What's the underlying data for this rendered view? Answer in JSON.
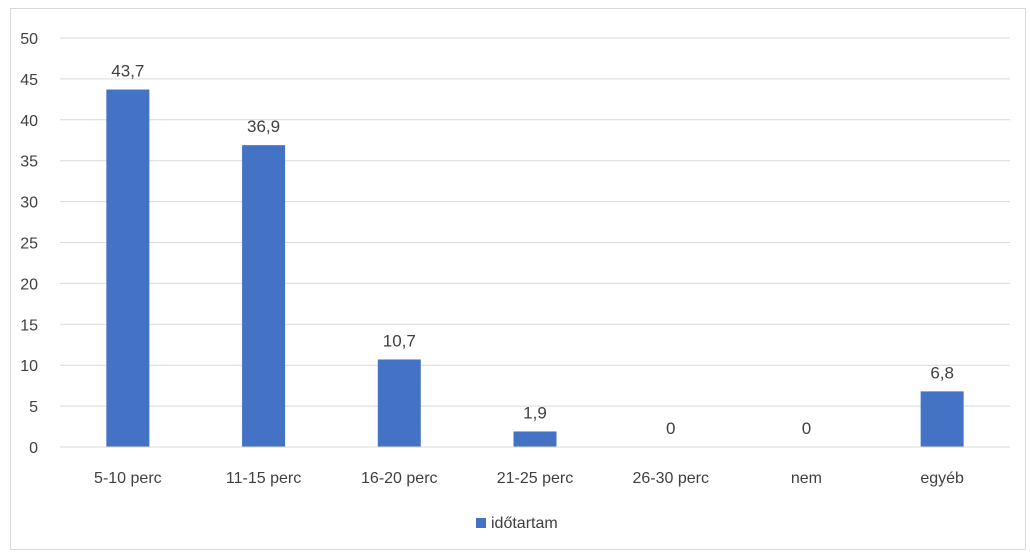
{
  "chart_data": {
    "type": "bar",
    "categories": [
      "5-10 perc",
      "11-15 perc",
      "16-20 perc",
      "21-25 perc",
      "26-30 perc",
      "nem",
      "egyéb"
    ],
    "series": [
      {
        "name": "időtartam",
        "values": [
          43.7,
          36.9,
          10.7,
          1.9,
          0,
          0,
          6.8
        ],
        "color": "#4472c4"
      }
    ],
    "data_labels": [
      "43,7",
      "36,9",
      "10,7",
      "1,9",
      "0",
      "0",
      "6,8"
    ],
    "yticks": [
      "0",
      "5",
      "10",
      "15",
      "20",
      "25",
      "30",
      "35",
      "40",
      "45",
      "50"
    ],
    "ylim": [
      0,
      50
    ],
    "grid": true,
    "legend_position": "bottom",
    "title": "",
    "xlabel": "",
    "ylabel": ""
  }
}
